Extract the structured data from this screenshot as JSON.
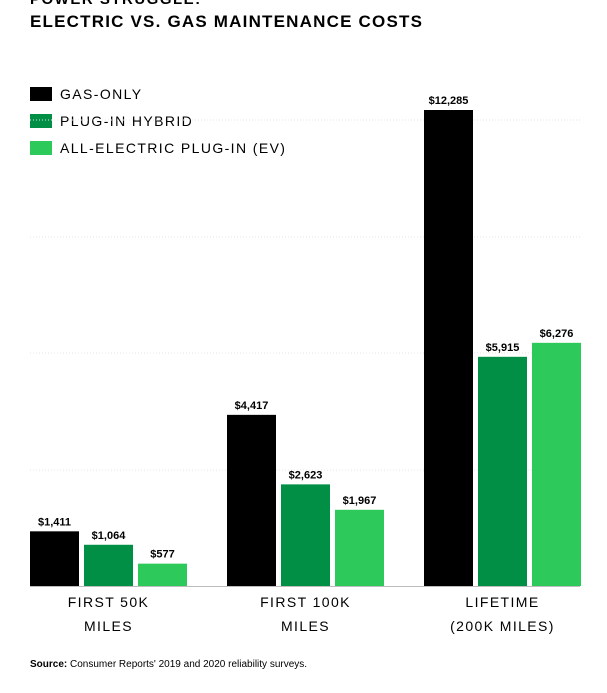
{
  "header": {
    "cut_heading": "POWER STRUGGLE:",
    "title": "ELECTRIC VS. GAS MAINTENANCE COSTS"
  },
  "source": {
    "label": "Source:",
    "text": "Consumer Reports' 2019 and 2020 reliability surveys."
  },
  "chart_data": {
    "type": "bar",
    "title": "ELECTRIC VS. GAS MAINTENANCE COSTS",
    "categories": [
      [
        "FIRST 50K",
        "MILES"
      ],
      [
        "FIRST 100K",
        "MILES"
      ],
      [
        "LIFETIME",
        "(200K MILES)"
      ]
    ],
    "series": [
      {
        "name": "GAS-ONLY",
        "color": "#000000",
        "values": [
          1411,
          4417,
          12285
        ],
        "labels": [
          "$1,411",
          "$4,417",
          "$12,285"
        ]
      },
      {
        "name": "PLUG-IN HYBRID",
        "color": "#008f45",
        "values": [
          1064,
          2623,
          5915
        ],
        "labels": [
          "$1,064",
          "$2,623",
          "$5,915"
        ]
      },
      {
        "name": "ALL-ELECTRIC PLUG-IN (EV)",
        "color": "#2dc95a",
        "values": [
          577,
          1967,
          6276
        ],
        "labels": [
          "$577",
          "$1,967",
          "$6,276"
        ]
      }
    ],
    "ylim": [
      0,
      12285
    ],
    "grid": true,
    "legend_position": "top-left",
    "xlabel": "",
    "ylabel": ""
  }
}
